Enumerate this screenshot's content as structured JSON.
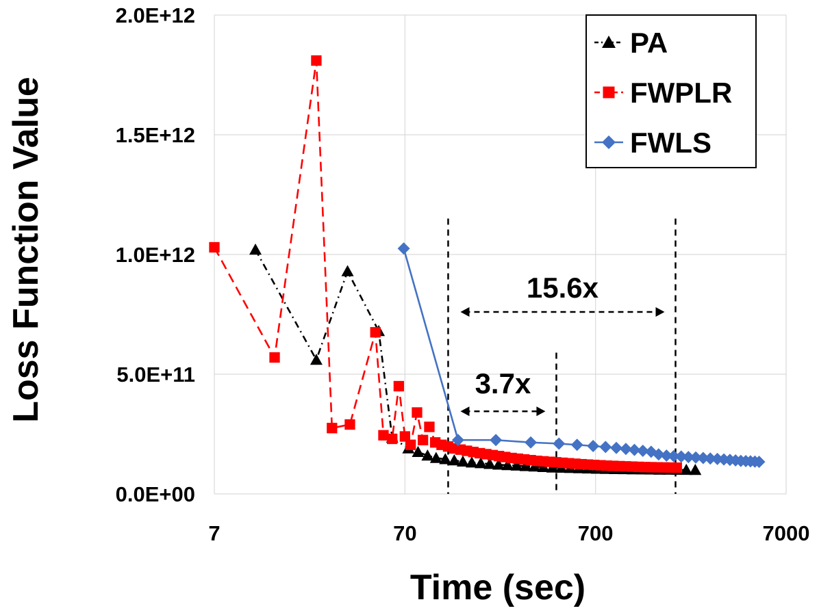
{
  "chart_data": {
    "type": "line",
    "title": "",
    "xlabel": "Time (sec)",
    "ylabel": "Loss Function Value",
    "xscale": "log",
    "xlim": [
      7,
      7000
    ],
    "ylim": [
      0,
      2000000000000
    ],
    "x_ticks": [
      {
        "value": 7,
        "label": "7"
      },
      {
        "value": 70,
        "label": "70"
      },
      {
        "value": 700,
        "label": "700"
      },
      {
        "value": 7000,
        "label": "7000"
      }
    ],
    "y_ticks": [
      {
        "value": 0,
        "label": "0.0E+00"
      },
      {
        "value": 500000000000,
        "label": "5.0E+11"
      },
      {
        "value": 1000000000000,
        "label": "1.0E+12"
      },
      {
        "value": 1500000000000,
        "label": "1.5E+12"
      },
      {
        "value": 2000000000000,
        "label": "2.0E+12"
      }
    ],
    "grid": true,
    "legend_position": "top-right",
    "series": [
      {
        "name": "PA",
        "color": "#000000",
        "marker": "triangle",
        "line_style": "dash-dot",
        "x": [
          11.5,
          24,
          35,
          51,
          60,
          73,
          82,
          92,
          102,
          114,
          127,
          141,
          157,
          175,
          195,
          217,
          242,
          270,
          301,
          335,
          373,
          416,
          463,
          516,
          575,
          640,
          713,
          795,
          885,
          986,
          1098,
          1223,
          1362,
          1517,
          1690,
          1882,
          2096,
          2335
        ],
        "y": [
          1020000000000,
          560000000000,
          930000000000,
          680000000000,
          235000000000,
          190000000000,
          175000000000,
          160000000000,
          150000000000,
          145000000000,
          140000000000,
          135000000000,
          131000000000,
          128000000000,
          125000000000,
          122000000000,
          120000000000,
          118000000000,
          116000000000,
          114000000000,
          112000000000,
          110000000000,
          109000000000,
          108000000000,
          107000000000,
          106000000000,
          105000000000,
          104000000000,
          103500000000,
          103000000000,
          102500000000,
          102000000000,
          101500000000,
          101000000000,
          100800000000,
          100500000000,
          100200000000,
          100000000000
        ]
      },
      {
        "name": "FWPLR",
        "color": "#ff0000",
        "marker": "square",
        "line_style": "dashed",
        "x": [
          7,
          14.5,
          24,
          29,
          36,
          49,
          54,
          60,
          65,
          70,
          75,
          81,
          87,
          94,
          101,
          109,
          118,
          127,
          137,
          148,
          160,
          173,
          187,
          202,
          218,
          235,
          254,
          274,
          296,
          320,
          345,
          373,
          403,
          435,
          470,
          507,
          548,
          591,
          638,
          689,
          744,
          803,
          867,
          936,
          1010,
          1091,
          1178,
          1272,
          1373,
          1483,
          1601,
          1729,
          1867
        ],
        "y": [
          1030000000000,
          570000000000,
          1810000000000,
          275000000000,
          290000000000,
          675000000000,
          245000000000,
          230000000000,
          450000000000,
          240000000000,
          205000000000,
          340000000000,
          225000000000,
          280000000000,
          215000000000,
          205000000000,
          198000000000,
          190000000000,
          185000000000,
          180000000000,
          175000000000,
          170000000000,
          166000000000,
          162000000000,
          158000000000,
          154000000000,
          150000000000,
          147000000000,
          144000000000,
          141000000000,
          138000000000,
          136000000000,
          134000000000,
          132000000000,
          130000000000,
          128000000000,
          126000000000,
          124000000000,
          122500000000,
          121000000000,
          119500000000,
          118000000000,
          117000000000,
          116000000000,
          115000000000,
          114000000000,
          113000000000,
          112000000000,
          111500000000,
          111000000000,
          110500000000,
          110000000000,
          109500000000
        ]
      },
      {
        "name": "FWLS",
        "color": "#4472c4",
        "marker": "diamond",
        "line_style": "solid",
        "x": [
          69,
          133,
          210,
          320,
          450,
          560,
          680,
          790,
          900,
          1010,
          1120,
          1240,
          1370,
          1500,
          1650,
          1800,
          1970,
          2150,
          2350,
          2570,
          2800,
          3050,
          3300,
          3550,
          3800,
          4050,
          4300,
          4550,
          4800,
          5050
        ],
        "y": [
          1025000000000,
          225000000000,
          225000000000,
          215000000000,
          210000000000,
          205000000000,
          200000000000,
          196000000000,
          192000000000,
          188000000000,
          184000000000,
          180000000000,
          176000000000,
          165000000000,
          160000000000,
          158000000000,
          156000000000,
          154000000000,
          152000000000,
          150000000000,
          148000000000,
          146000000000,
          144000000000,
          142000000000,
          140000000000,
          138000000000,
          137000000000,
          136000000000,
          135000000000,
          134000000000
        ]
      }
    ],
    "annotations": [
      {
        "label": "15.6x",
        "x_from": 118,
        "x_to": 1840,
        "y_arrow": 760000000000,
        "y_label": 860000000000
      },
      {
        "label": "3.7x",
        "x_from": 118,
        "x_to": 436,
        "y_arrow": 345000000000,
        "y_label": 460000000000
      }
    ],
    "vlines": [
      {
        "x": 118,
        "y_top": 1150000000000
      },
      {
        "x": 436,
        "y_top": 590000000000
      },
      {
        "x": 1840,
        "y_top": 1150000000000
      }
    ]
  }
}
